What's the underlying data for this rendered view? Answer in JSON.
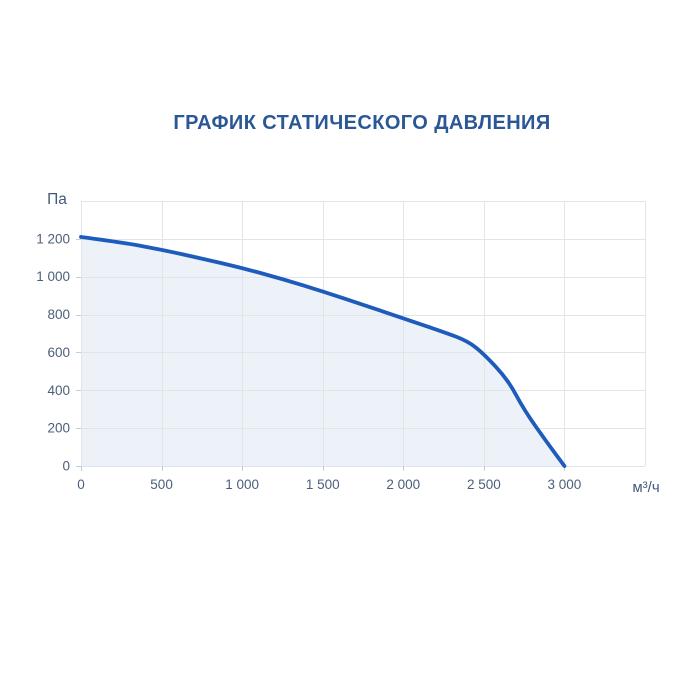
{
  "page": {
    "background": "#ffffff"
  },
  "chart_data": {
    "type": "line",
    "title": "ГРАФИК СТАТИЧЕСКОГО ДАВЛЕНИЯ",
    "xlabel": "м³/ч",
    "ylabel": "Па",
    "xlim": [
      0,
      3500
    ],
    "ylim": [
      0,
      1400
    ],
    "x_grid_step": 500,
    "y_grid_step": 200,
    "grid": true,
    "legend": false,
    "x_ticks": [
      0,
      500,
      1000,
      1500,
      2000,
      2500,
      3000
    ],
    "x_tick_labels": [
      "0",
      "500",
      "1 000",
      "1 500",
      "2 000",
      "2 500",
      "3 000"
    ],
    "y_ticks": [
      0,
      200,
      400,
      600,
      800,
      1000,
      1200
    ],
    "y_tick_labels": [
      "0",
      "200",
      "400",
      "600",
      "800",
      "1 000",
      "1 200"
    ],
    "series": [
      {
        "name": "static-pressure-curve",
        "points": [
          [
            0,
            1210
          ],
          [
            250,
            1182
          ],
          [
            500,
            1143
          ],
          [
            750,
            1096
          ],
          [
            1000,
            1046
          ],
          [
            1250,
            988
          ],
          [
            1500,
            922
          ],
          [
            1750,
            852
          ],
          [
            2000,
            780
          ],
          [
            2250,
            708
          ],
          [
            2400,
            660
          ],
          [
            2500,
            592
          ],
          [
            2650,
            455
          ],
          [
            2750,
            295
          ],
          [
            2900,
            115
          ],
          [
            3000,
            0
          ]
        ],
        "fill_to_zero": true
      }
    ],
    "colors": {
      "title": "#2b5797",
      "curve": "#1d5cbc",
      "fill": "#edf1f8",
      "grid": "#e1e5ea",
      "tick_mark": "#c7cdd6",
      "tick_text": "#4c5f78",
      "unit_text": "#44597a"
    }
  }
}
